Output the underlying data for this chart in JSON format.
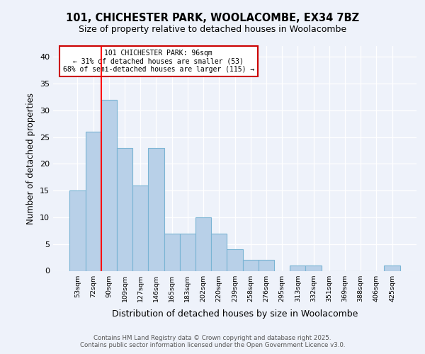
{
  "title_line1": "101, CHICHESTER PARK, WOOLACOMBE, EX34 7BZ",
  "title_line2": "Size of property relative to detached houses in Woolacombe",
  "xlabel": "Distribution of detached houses by size in Woolacombe",
  "ylabel": "Number of detached properties",
  "categories": [
    "53sqm",
    "72sqm",
    "90sqm",
    "109sqm",
    "127sqm",
    "146sqm",
    "165sqm",
    "183sqm",
    "202sqm",
    "220sqm",
    "239sqm",
    "258sqm",
    "276sqm",
    "295sqm",
    "313sqm",
    "332sqm",
    "351sqm",
    "369sqm",
    "388sqm",
    "406sqm",
    "425sqm"
  ],
  "values": [
    15,
    26,
    32,
    23,
    16,
    23,
    7,
    7,
    10,
    7,
    4,
    2,
    2,
    0,
    1,
    1,
    0,
    0,
    0,
    0,
    1
  ],
  "bar_color": "#b8d0e8",
  "bar_edge_color": "#7ab4d4",
  "redline_x": 1.5,
  "annotation_title": "101 CHICHESTER PARK: 96sqm",
  "annotation_line2": "← 31% of detached houses are smaller (53)",
  "annotation_line3": "68% of semi-detached houses are larger (115) →",
  "annotation_box_color": "#ffffff",
  "annotation_box_edge": "#cc0000",
  "ylim": [
    0,
    42
  ],
  "yticks": [
    0,
    5,
    10,
    15,
    20,
    25,
    30,
    35,
    40
  ],
  "background_color": "#eef2fa",
  "footer_line1": "Contains HM Land Registry data © Crown copyright and database right 2025.",
  "footer_line2": "Contains public sector information licensed under the Open Government Licence v3.0."
}
